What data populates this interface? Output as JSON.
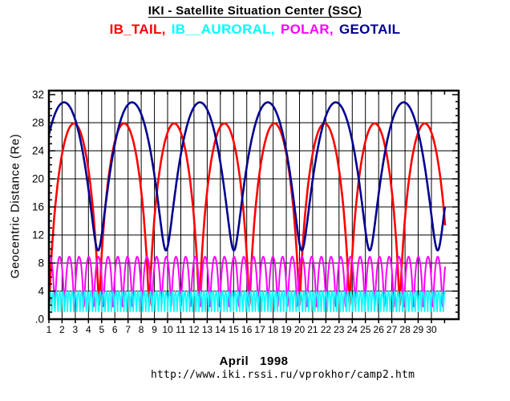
{
  "header": {
    "title": "IKI - Satellite Situation Center (SSC)",
    "satellites": [
      {
        "label": "IB_TAIL,",
        "color": "#ff0000"
      },
      {
        "label": "IB__AURORAL,",
        "color": "#00ffff"
      },
      {
        "label": "POLAR,",
        "color": "#ff00ff"
      },
      {
        "label": "GEOTAIL",
        "color": "#000090"
      }
    ]
  },
  "footer": {
    "month_label": "April   1998",
    "url": "http://www.iki.rssi.ru/vprokhor/camp2.htm"
  },
  "chart_data": {
    "type": "line",
    "title": "IKI - Satellite Situation Center (SSC)",
    "xlabel": "",
    "ylabel": "Geocentric Distance (Re)",
    "xlim": [
      1,
      32.07
    ],
    "ylim": [
      0,
      32.57
    ],
    "x_tick_days": [
      1,
      2,
      3,
      4,
      5,
      6,
      7,
      8,
      9,
      10,
      11,
      12,
      13,
      14,
      15,
      16,
      17,
      18,
      19,
      20,
      21,
      22,
      23,
      24,
      25,
      26,
      27,
      28,
      29,
      30,
      31
    ],
    "x_tick_labels": [
      "1",
      "2",
      "3",
      "4",
      "5",
      "6",
      "7",
      "8",
      "9",
      "10",
      "11",
      "12",
      "13",
      "14",
      "15",
      "16",
      "17",
      "18",
      "19",
      "20",
      "21",
      "22",
      "23",
      "24",
      "25",
      "26",
      "27",
      "28",
      "29",
      "30"
    ],
    "y_ticks": [
      0,
      4,
      8,
      12,
      16,
      20,
      24,
      28,
      32
    ],
    "y_tick_labels": [
      ".0",
      "4",
      "8",
      "12",
      "16",
      "20",
      "24",
      "28",
      "32"
    ],
    "y_minor_tick_step_re": 1,
    "grid": {
      "vertical_every_days": 1,
      "horizontal_every_re": 4,
      "color": "#000000"
    },
    "data_start_day": 1.0,
    "data_end_day": 31.05,
    "series": [
      {
        "name": "IB_TAIL",
        "color": "#ff0000",
        "model": "kepler-ellipse",
        "apogee_re": 27.9,
        "perigee_re": 2.0,
        "period_days": 3.8,
        "first_apogee_day": 2.9,
        "stroke_width": 2.6,
        "samples_per_period": 160
      },
      {
        "name": "GEOTAIL",
        "color": "#000090",
        "model": "kepler-ellipse",
        "apogee_re": 30.9,
        "perigee_re": 9.8,
        "period_days": 5.15,
        "first_apogee_day": 2.15,
        "stroke_width": 2.6,
        "samples_per_period": 160
      },
      {
        "name": "POLAR",
        "color": "#ff00ff",
        "model": "kepler-ellipse",
        "apogee_re": 8.9,
        "perigee_re": 1.8,
        "period_days": 0.735,
        "first_apogee_day": 1.08,
        "stroke_width": 2.0,
        "samples_per_period": 90
      },
      {
        "name": "IB_AURORAL",
        "color": "#00ffff",
        "model": "kepler-ellipse",
        "apogee_re": 3.95,
        "perigee_re": 1.1,
        "period_days": 0.2375,
        "first_apogee_day": 1.1,
        "stroke_width": 1.6,
        "samples_per_period": 40
      }
    ]
  }
}
